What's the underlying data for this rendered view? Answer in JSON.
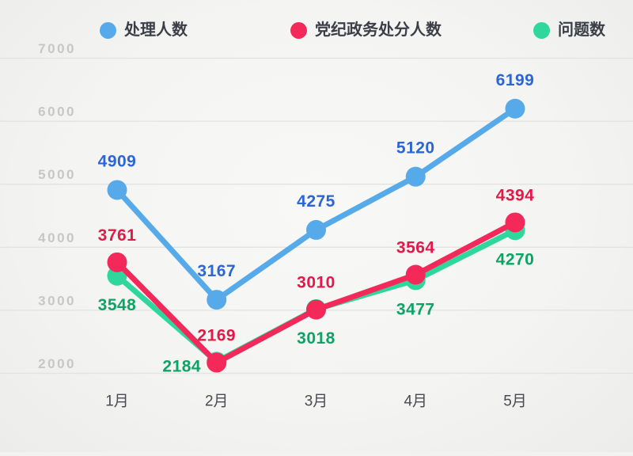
{
  "legend": {
    "items": [
      {
        "label": "处理人数",
        "color": "#57aae9"
      },
      {
        "label": "党纪政务处分人数",
        "color": "#f4295a"
      },
      {
        "label": "问题数",
        "color": "#2fd79c"
      }
    ]
  },
  "chart_data": {
    "type": "line",
    "categories": [
      "1月",
      "2月",
      "3月",
      "4月",
      "5月"
    ],
    "series": [
      {
        "name": "处理人数",
        "color": "#57aae9",
        "label_color": "#2b65da",
        "values": [
          4909,
          3167,
          4275,
          5120,
          6199
        ]
      },
      {
        "name": "党纪政务处分人数",
        "color": "#f4295a",
        "label_color": "#e51948",
        "values": [
          3761,
          2169,
          3010,
          3564,
          4394
        ]
      },
      {
        "name": "问题数",
        "color": "#2fd79c",
        "label_color": "#0ca465",
        "values": [
          3548,
          2184,
          3018,
          3477,
          4270
        ]
      }
    ],
    "y_ticks": [
      2000,
      3000,
      4000,
      5000,
      6000,
      7000
    ],
    "ylim": [
      2000,
      7000
    ],
    "grid": true,
    "legend_position": "top",
    "gridline_color": "#e2e2e0",
    "axis_label_color": "#c7c7c4",
    "x_label_color": "#4a4a52"
  }
}
